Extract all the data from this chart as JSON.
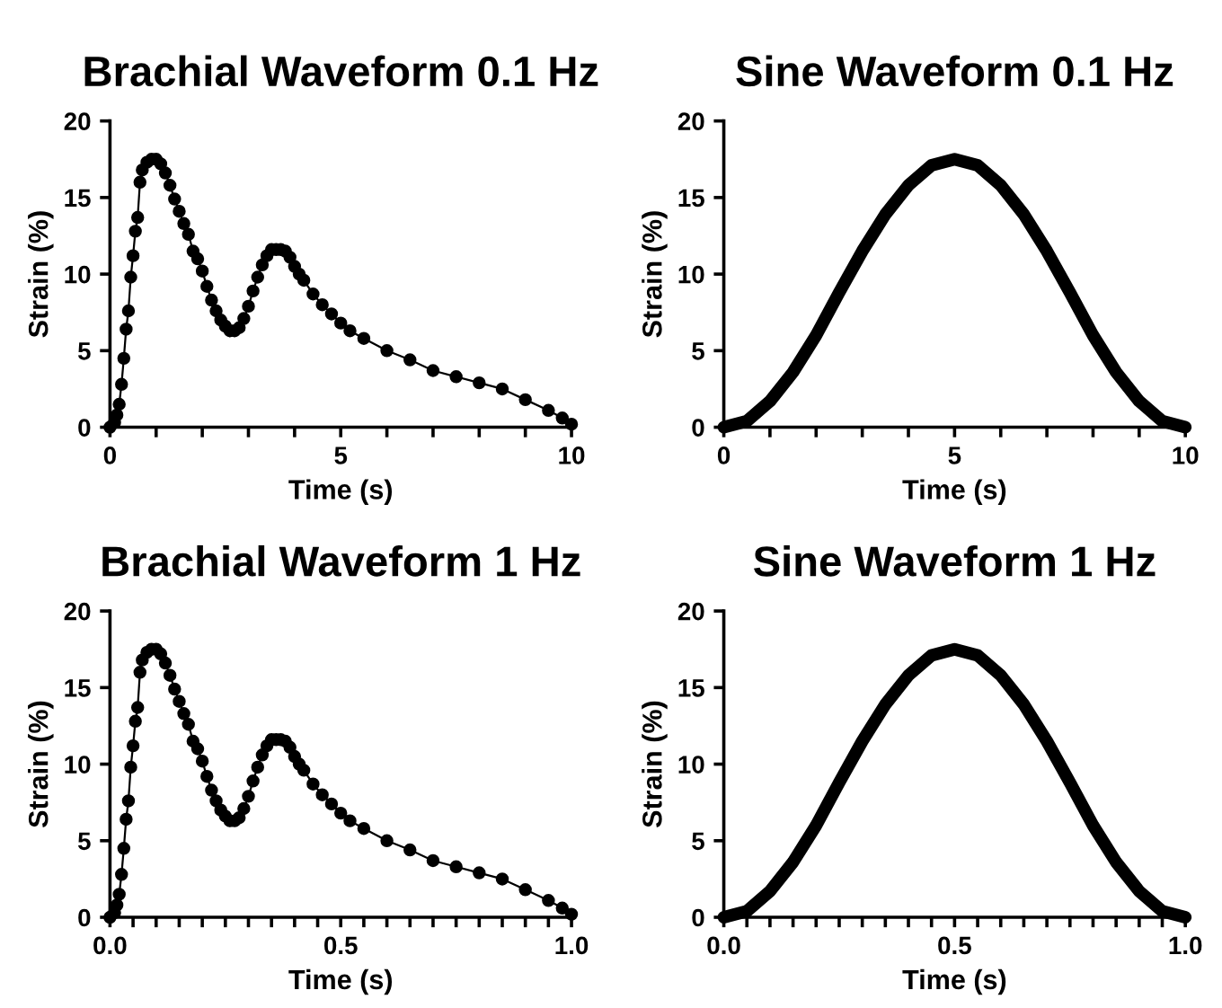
{
  "chart_data": [
    {
      "type": "line",
      "title": "Brachial Waveform 0.1 Hz",
      "xlabel": "Time (s)",
      "ylabel": "Strain (%)",
      "marker": "circle",
      "line_style": "solid",
      "grid": false,
      "legend": false,
      "xlim": [
        0,
        10
      ],
      "xticks": [
        0,
        {
          "value": 1,
          "label": null
        },
        {
          "value": 2,
          "label": null
        },
        {
          "value": 3,
          "label": null
        },
        {
          "value": 4,
          "label": null
        },
        5,
        {
          "value": 6,
          "label": null
        },
        {
          "value": 7,
          "label": null
        },
        {
          "value": 8,
          "label": null
        },
        {
          "value": 9,
          "label": null
        },
        10
      ],
      "ylim": [
        0,
        20
      ],
      "yticks": [
        0,
        5,
        10,
        15,
        20
      ],
      "series": [
        {
          "color": "#000000",
          "x": [
            0,
            0.1,
            0.15,
            0.2,
            0.25,
            0.3,
            0.35,
            0.4,
            0.45,
            0.5,
            0.55,
            0.6,
            0.65,
            0.7,
            0.8,
            0.9,
            1.0,
            1.1,
            1.2,
            1.3,
            1.4,
            1.5,
            1.6,
            1.7,
            1.8,
            1.9,
            2.0,
            2.1,
            2.2,
            2.3,
            2.4,
            2.5,
            2.6,
            2.7,
            2.8,
            2.9,
            3.0,
            3.1,
            3.2,
            3.3,
            3.4,
            3.5,
            3.6,
            3.7,
            3.8,
            3.9,
            4.0,
            4.1,
            4.2,
            4.4,
            4.6,
            4.8,
            5.0,
            5.2,
            5.5,
            6.0,
            6.5,
            7.0,
            7.5,
            8.0,
            8.5,
            9.0,
            9.5,
            9.8,
            10.0
          ],
          "values": [
            0,
            0.3,
            0.8,
            1.5,
            2.8,
            4.5,
            6.4,
            7.6,
            9.8,
            11.2,
            12.8,
            13.7,
            16,
            16.8,
            17.3,
            17.5,
            17.5,
            17.2,
            16.6,
            15.8,
            14.9,
            14.1,
            13.3,
            12.6,
            11.5,
            11.0,
            10.2,
            9.2,
            8.3,
            7.6,
            7.0,
            6.6,
            6.3,
            6.3,
            6.5,
            7.1,
            7.9,
            8.9,
            9.8,
            10.6,
            11.2,
            11.6,
            11.6,
            11.6,
            11.5,
            11.1,
            10.5,
            10.0,
            9.6,
            8.7,
            8.0,
            7.4,
            6.8,
            6.3,
            5.8,
            5.0,
            4.4,
            3.7,
            3.3,
            2.9,
            2.5,
            1.8,
            1.1,
            0.6,
            0.2
          ]
        }
      ]
    },
    {
      "type": "line",
      "title": "Sine Waveform 0.1 Hz",
      "xlabel": "Time (s)",
      "ylabel": "Strain (%)",
      "marker": "none",
      "line_style": "solid",
      "grid": false,
      "legend": false,
      "xlim": [
        0,
        10
      ],
      "xticks": [
        0,
        {
          "value": 1,
          "label": null
        },
        {
          "value": 2,
          "label": null
        },
        {
          "value": 3,
          "label": null
        },
        {
          "value": 4,
          "label": null
        },
        5,
        {
          "value": 6,
          "label": null
        },
        {
          "value": 7,
          "label": null
        },
        {
          "value": 8,
          "label": null
        },
        {
          "value": 9,
          "label": null
        },
        10
      ],
      "ylim": [
        0,
        20
      ],
      "yticks": [
        0,
        5,
        10,
        15,
        20
      ],
      "series": [
        {
          "color": "#000000",
          "x": [
            0,
            0.5,
            1,
            1.5,
            2,
            2.5,
            3,
            3.5,
            4,
            4.5,
            5,
            5.5,
            6,
            6.5,
            7,
            7.5,
            8,
            8.5,
            9,
            9.5,
            10
          ],
          "values": [
            0,
            0.4,
            1.7,
            3.6,
            6.0,
            8.8,
            11.5,
            13.9,
            15.8,
            17.1,
            17.5,
            17.1,
            15.8,
            13.9,
            11.5,
            8.8,
            6.0,
            3.6,
            1.7,
            0.4,
            0
          ]
        }
      ]
    },
    {
      "type": "line",
      "title": "Brachial Waveform 1 Hz",
      "xlabel": "Time (s)",
      "ylabel": "Strain (%)",
      "marker": "circle",
      "line_style": "solid",
      "grid": false,
      "legend": false,
      "xlim": [
        0,
        1
      ],
      "xticks": [
        {
          "value": 0,
          "label": "0.0"
        },
        {
          "value": 0.05,
          "label": null
        },
        {
          "value": 0.1,
          "label": null
        },
        {
          "value": 0.15,
          "label": null
        },
        {
          "value": 0.2,
          "label": null
        },
        {
          "value": 0.25,
          "label": null
        },
        {
          "value": 0.3,
          "label": null
        },
        {
          "value": 0.35,
          "label": null
        },
        {
          "value": 0.4,
          "label": null
        },
        {
          "value": 0.45,
          "label": null
        },
        0.5,
        {
          "value": 0.55,
          "label": null
        },
        {
          "value": 0.6,
          "label": null
        },
        {
          "value": 0.65,
          "label": null
        },
        {
          "value": 0.7,
          "label": null
        },
        {
          "value": 0.75,
          "label": null
        },
        {
          "value": 0.8,
          "label": null
        },
        {
          "value": 0.85,
          "label": null
        },
        {
          "value": 0.9,
          "label": null
        },
        {
          "value": 0.95,
          "label": null
        },
        {
          "value": 1,
          "label": "1.0"
        }
      ],
      "ylim": [
        0,
        20
      ],
      "yticks": [
        0,
        5,
        10,
        15,
        20
      ],
      "series": [
        {
          "color": "#000000",
          "x": [
            0,
            0.01,
            0.015,
            0.02,
            0.025,
            0.03,
            0.035,
            0.04,
            0.045,
            0.05,
            0.055,
            0.06,
            0.065,
            0.07,
            0.08,
            0.09,
            0.1,
            0.11,
            0.12,
            0.13,
            0.14,
            0.15,
            0.16,
            0.17,
            0.18,
            0.19,
            0.2,
            0.21,
            0.22,
            0.23,
            0.24,
            0.25,
            0.26,
            0.27,
            0.28,
            0.29,
            0.3,
            0.31,
            0.32,
            0.33,
            0.34,
            0.35,
            0.36,
            0.37,
            0.38,
            0.39,
            0.4,
            0.41,
            0.42,
            0.44,
            0.46,
            0.48,
            0.5,
            0.52,
            0.55,
            0.6,
            0.65,
            0.7,
            0.75,
            0.8,
            0.85,
            0.9,
            0.95,
            0.98,
            1.0
          ],
          "values": [
            0,
            0.3,
            0.8,
            1.5,
            2.8,
            4.5,
            6.4,
            7.6,
            9.8,
            11.2,
            12.8,
            13.7,
            16,
            16.8,
            17.3,
            17.5,
            17.5,
            17.2,
            16.6,
            15.8,
            14.9,
            14.1,
            13.3,
            12.6,
            11.5,
            11.0,
            10.2,
            9.2,
            8.3,
            7.6,
            7.0,
            6.6,
            6.3,
            6.3,
            6.5,
            7.1,
            7.9,
            8.9,
            9.8,
            10.6,
            11.2,
            11.6,
            11.6,
            11.6,
            11.5,
            11.1,
            10.5,
            10.0,
            9.6,
            8.7,
            8.0,
            7.4,
            6.8,
            6.3,
            5.8,
            5.0,
            4.4,
            3.7,
            3.3,
            2.9,
            2.5,
            1.8,
            1.1,
            0.6,
            0.2
          ]
        }
      ]
    },
    {
      "type": "line",
      "title": "Sine Waveform 1 Hz",
      "xlabel": "Time (s)",
      "ylabel": "Strain (%)",
      "marker": "none",
      "line_style": "solid",
      "grid": false,
      "legend": false,
      "xlim": [
        0,
        1
      ],
      "xticks": [
        {
          "value": 0,
          "label": "0.0"
        },
        {
          "value": 0.05,
          "label": null
        },
        {
          "value": 0.1,
          "label": null
        },
        {
          "value": 0.15,
          "label": null
        },
        {
          "value": 0.2,
          "label": null
        },
        {
          "value": 0.25,
          "label": null
        },
        {
          "value": 0.3,
          "label": null
        },
        {
          "value": 0.35,
          "label": null
        },
        {
          "value": 0.4,
          "label": null
        },
        {
          "value": 0.45,
          "label": null
        },
        0.5,
        {
          "value": 0.55,
          "label": null
        },
        {
          "value": 0.6,
          "label": null
        },
        {
          "value": 0.65,
          "label": null
        },
        {
          "value": 0.7,
          "label": null
        },
        {
          "value": 0.75,
          "label": null
        },
        {
          "value": 0.8,
          "label": null
        },
        {
          "value": 0.85,
          "label": null
        },
        {
          "value": 0.9,
          "label": null
        },
        {
          "value": 0.95,
          "label": null
        },
        {
          "value": 1,
          "label": "1.0"
        }
      ],
      "ylim": [
        0,
        20
      ],
      "yticks": [
        0,
        5,
        10,
        15,
        20
      ],
      "series": [
        {
          "color": "#000000",
          "x": [
            0,
            0.05,
            0.1,
            0.15,
            0.2,
            0.25,
            0.3,
            0.35,
            0.4,
            0.45,
            0.5,
            0.55,
            0.6,
            0.65,
            0.7,
            0.75,
            0.8,
            0.85,
            0.9,
            0.95,
            1.0
          ],
          "values": [
            0,
            0.4,
            1.7,
            3.6,
            6.0,
            8.8,
            11.5,
            13.9,
            15.8,
            17.1,
            17.5,
            17.1,
            15.8,
            13.9,
            11.5,
            8.8,
            6.0,
            3.6,
            1.7,
            0.4,
            0
          ]
        }
      ]
    }
  ]
}
